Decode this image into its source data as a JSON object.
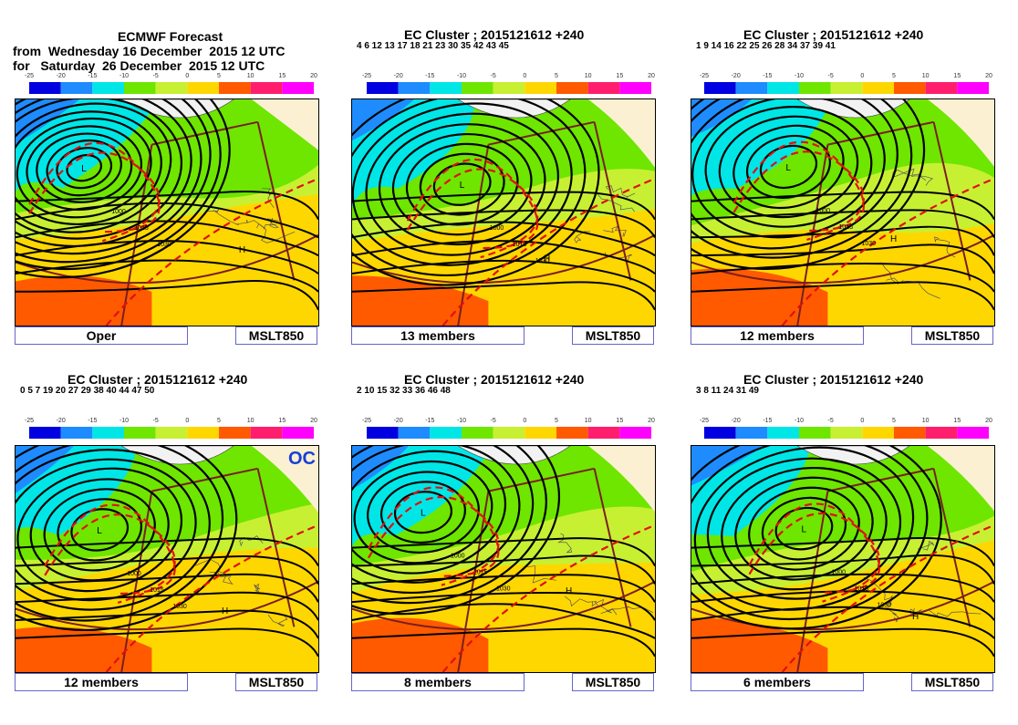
{
  "oper_header": {
    "title": "ECMWF Forecast",
    "line_from": "from  Wednesday 16 December  2015 12 UTC",
    "line_for": "for   Saturday  26 December  2015 12 UTC"
  },
  "colorbar": {
    "ticks": [
      "-25",
      "-20",
      "-15",
      "-10",
      "-5",
      "0",
      "5",
      "10",
      "15",
      "20"
    ],
    "colors": [
      "#0000e0",
      "#1e8cff",
      "#00e6e6",
      "#6ee600",
      "#c8f032",
      "#ffd700",
      "#ff5a00",
      "#ff1e6e",
      "#ff00ff"
    ]
  },
  "panels": [
    {
      "id": "oper",
      "label": "Oper",
      "field": "MSLT850",
      "title": "",
      "members": ""
    },
    {
      "id": "c1",
      "label": "13 members",
      "field": "MSLT850",
      "title": "EC Cluster    ; 2015121612 +240",
      "members": "4  6 12 13 17 18 21 23 30 35 42 43 45"
    },
    {
      "id": "c2",
      "label": "12 members",
      "field": "MSLT850",
      "title": "EC Cluster    ; 2015121612 +240",
      "members": "1  9 14 16 22 25 26 28 34 37 39 41"
    },
    {
      "id": "c3",
      "label": "12 members",
      "field": "MSLT850",
      "title": "EC Cluster    ; 2015121612 +240",
      "members": "0  5  7 19 20 27 29 38 40 44 47 50",
      "badge": "OC"
    },
    {
      "id": "c4",
      "label": "8 members",
      "field": "MSLT850",
      "title": "EC Cluster    ; 2015121612 +240",
      "members": "2 10 15 32 33 36 46 48"
    },
    {
      "id": "c5",
      "label": "6 members",
      "field": "MSLT850",
      "title": "EC Cluster    ; 2015121612 +240",
      "members": "3  8 11 24 31 49"
    }
  ],
  "pressure_labels": [
    "L",
    "H",
    "1000",
    "1015",
    "1030",
    "995",
    "980"
  ]
}
